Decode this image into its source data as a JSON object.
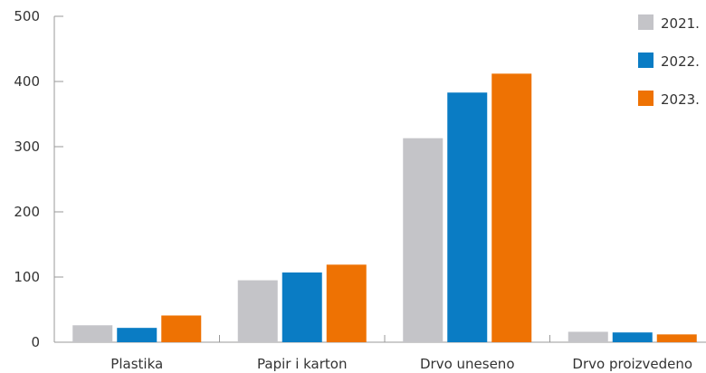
{
  "chart_data": {
    "type": "bar",
    "categories": [
      "Plastika",
      "Papir i karton",
      "Drvo uneseno",
      "Drvo proizvedeno"
    ],
    "series": [
      {
        "name": "2021.",
        "values": [
          26,
          95,
          313,
          16
        ],
        "color": "#c4c4c8"
      },
      {
        "name": "2022.",
        "values": [
          22,
          107,
          383,
          15
        ],
        "color": "#0a7cc4"
      },
      {
        "name": "2023.",
        "values": [
          41,
          119,
          412,
          12
        ],
        "color": "#ee7203"
      }
    ],
    "y_ticks": [
      0,
      100,
      200,
      300,
      400,
      500
    ],
    "ylim": [
      0,
      500
    ],
    "grid": false,
    "legend_position": "top-right",
    "title": "",
    "xlabel": "",
    "ylabel": ""
  }
}
